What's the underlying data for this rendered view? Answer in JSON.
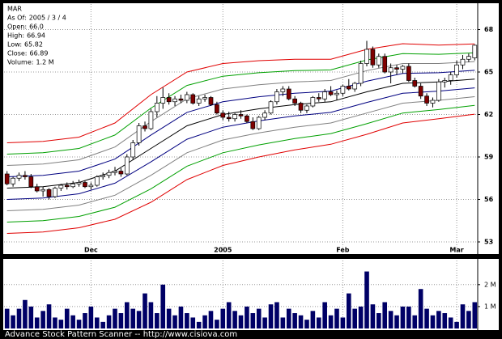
{
  "chart_data": [
    {
      "type": "candlestick",
      "info": [
        {
          "text": "MAR"
        },
        {
          "label": "As Of:",
          "value": "2005 / 3 / 4"
        },
        {
          "label": "Open:",
          "value": "66.0"
        },
        {
          "label": "High:",
          "value": "66.94"
        },
        {
          "label": "Low:",
          "value": "65.82"
        },
        {
          "label": "Close:",
          "value": "66.89"
        },
        {
          "label": "Volume:",
          "value": "1.2 M"
        }
      ],
      "categories": [
        null,
        null,
        null,
        null,
        null,
        null,
        null,
        null,
        null,
        null,
        null,
        null,
        null,
        null,
        "Dec",
        null,
        null,
        null,
        null,
        null,
        null,
        null,
        null,
        null,
        null,
        null,
        null,
        null,
        null,
        null,
        null,
        null,
        null,
        null,
        null,
        null,
        "2005",
        null,
        null,
        null,
        null,
        null,
        null,
        null,
        null,
        null,
        null,
        null,
        null,
        null,
        null,
        null,
        null,
        null,
        null,
        null,
        "Feb",
        null,
        null,
        null,
        null,
        null,
        null,
        null,
        null,
        null,
        null,
        null,
        null,
        null,
        null,
        null,
        null,
        null,
        null,
        "Mar",
        null,
        null,
        null
      ],
      "open": [
        57.8,
        57.1,
        57.5,
        57.7,
        57.6,
        56.9,
        56.6,
        56.7,
        56.2,
        56.8,
        57.0,
        56.9,
        57.1,
        57.2,
        56.9,
        57.0,
        57.6,
        57.7,
        57.9,
        58.0,
        57.8,
        59.0,
        60.0,
        61.2,
        61.0,
        62.2,
        62.8,
        63.2,
        62.9,
        63.1,
        63.0,
        63.4,
        62.8,
        63.1,
        63.2,
        62.7,
        62.1,
        61.8,
        61.7,
        62.0,
        61.9,
        61.5,
        61.0,
        61.8,
        62.1,
        62.9,
        63.6,
        63.8,
        63.1,
        62.8,
        62.3,
        62.6,
        63.2,
        63.1,
        63.6,
        63.4,
        63.5,
        64.0,
        63.8,
        64.2,
        65.6,
        66.6,
        65.5,
        66.1,
        65.0,
        65.3,
        65.2,
        65.4,
        64.4,
        64.0,
        63.3,
        62.8,
        63.0,
        64.3,
        64.4,
        64.8,
        65.5,
        65.9,
        66.0
      ],
      "high": [
        58.0,
        57.6,
        57.9,
        58.0,
        57.8,
        57.1,
        56.9,
        56.8,
        56.9,
        57.1,
        57.2,
        57.3,
        57.4,
        57.3,
        57.2,
        57.7,
        57.9,
        58.1,
        58.3,
        58.2,
        59.2,
        60.2,
        61.4,
        61.5,
        62.4,
        63.3,
        63.9,
        63.5,
        63.3,
        63.4,
        63.6,
        63.5,
        63.3,
        63.4,
        63.3,
        62.9,
        62.3,
        62.2,
        62.1,
        62.3,
        62.0,
        61.8,
        61.9,
        62.3,
        63.0,
        63.8,
        64.0,
        64.0,
        63.3,
        62.9,
        62.7,
        63.3,
        63.5,
        63.8,
        64.0,
        63.7,
        64.1,
        64.5,
        64.3,
        65.8,
        67.2,
        66.8,
        66.3,
        66.3,
        65.6,
        65.5,
        65.5,
        65.6,
        64.6,
        64.2,
        63.5,
        63.2,
        64.5,
        64.6,
        65.0,
        65.8,
        66.2,
        66.3,
        66.94
      ],
      "low": [
        57.0,
        56.9,
        57.3,
        57.4,
        56.8,
        56.5,
        56.2,
        56.0,
        56.1,
        56.6,
        56.7,
        56.8,
        56.9,
        56.8,
        56.7,
        56.9,
        57.4,
        57.5,
        57.7,
        57.6,
        57.7,
        58.8,
        59.8,
        60.8,
        60.9,
        61.8,
        62.4,
        62.7,
        62.6,
        62.8,
        62.8,
        62.7,
        62.6,
        62.9,
        62.6,
        62.0,
        61.6,
        61.5,
        61.5,
        61.7,
        61.4,
        60.9,
        60.9,
        61.6,
        62.0,
        62.7,
        63.3,
        63.0,
        62.6,
        62.1,
        62.1,
        62.5,
        62.9,
        62.9,
        63.3,
        63.0,
        63.3,
        63.7,
        63.6,
        64.0,
        65.4,
        65.3,
        65.3,
        64.9,
        64.2,
        64.8,
        64.9,
        64.3,
        63.9,
        63.1,
        62.6,
        62.5,
        62.9,
        63.9,
        64.1,
        64.6,
        65.2,
        65.7,
        65.82
      ],
      "close": [
        57.1,
        57.5,
        57.7,
        57.6,
        56.9,
        56.6,
        56.7,
        56.2,
        56.8,
        57.0,
        56.9,
        57.1,
        57.2,
        56.9,
        57.0,
        57.6,
        57.7,
        57.9,
        58.0,
        57.8,
        59.0,
        60.0,
        61.2,
        61.0,
        62.2,
        62.8,
        63.2,
        62.9,
        63.1,
        63.0,
        63.4,
        62.8,
        63.1,
        63.2,
        62.7,
        62.1,
        61.8,
        61.7,
        62.0,
        61.9,
        61.5,
        61.0,
        61.8,
        62.1,
        62.9,
        63.6,
        63.8,
        63.1,
        62.8,
        62.3,
        62.6,
        63.2,
        63.1,
        63.6,
        63.4,
        63.5,
        64.0,
        63.8,
        64.2,
        65.6,
        66.6,
        65.5,
        66.1,
        65.0,
        65.3,
        65.2,
        65.4,
        64.4,
        64.0,
        63.3,
        62.8,
        63.0,
        64.3,
        64.4,
        64.8,
        65.5,
        65.9,
        66.1,
        66.89
      ],
      "up_color": "#ffffff",
      "down_color": "#800000",
      "bands": [
        {
          "color": "#e00000",
          "x": [
            0,
            6,
            12,
            18,
            24,
            30,
            36,
            42,
            48,
            54,
            60,
            66,
            72,
            78
          ],
          "values": [
            60.0,
            60.1,
            60.4,
            61.4,
            63.4,
            65.0,
            65.6,
            65.8,
            65.9,
            65.9,
            66.6,
            67.0,
            66.9,
            66.98
          ]
        },
        {
          "color": "#00a000",
          "x": [
            0,
            6,
            12,
            18,
            24,
            30,
            36,
            42,
            48,
            54,
            60,
            66,
            72,
            78
          ],
          "values": [
            59.2,
            59.3,
            59.6,
            60.55,
            62.45,
            64.05,
            64.7,
            64.95,
            65.1,
            65.15,
            65.85,
            66.3,
            66.25,
            66.36
          ]
        },
        {
          "color": "#808080",
          "x": [
            0,
            6,
            12,
            18,
            24,
            30,
            36,
            42,
            48,
            54,
            60,
            66,
            72,
            78
          ],
          "values": [
            58.4,
            58.5,
            58.8,
            59.7,
            61.5,
            63.1,
            63.8,
            64.1,
            64.3,
            64.4,
            65.1,
            65.6,
            65.6,
            65.74
          ]
        },
        {
          "color": "#000080",
          "x": [
            0,
            6,
            12,
            18,
            24,
            30,
            36,
            42,
            48,
            54,
            60,
            66,
            72,
            78
          ],
          "values": [
            57.6,
            57.7,
            58.0,
            58.85,
            60.55,
            62.15,
            62.9,
            63.25,
            63.5,
            63.65,
            64.35,
            64.9,
            64.95,
            65.12
          ]
        },
        {
          "color": "#000000",
          "x": [
            0,
            6,
            12,
            18,
            24,
            30,
            36,
            42,
            48,
            54,
            60,
            66,
            72,
            78
          ],
          "values": [
            56.8,
            56.9,
            57.2,
            58.0,
            59.6,
            61.2,
            62.0,
            62.4,
            62.7,
            62.9,
            63.6,
            64.2,
            64.3,
            64.5
          ]
        },
        {
          "color": "#000080",
          "x": [
            0,
            6,
            12,
            18,
            24,
            30,
            36,
            42,
            48,
            54,
            60,
            66,
            72,
            78
          ],
          "values": [
            56.0,
            56.1,
            56.4,
            57.15,
            58.65,
            60.25,
            61.1,
            61.55,
            61.9,
            62.15,
            62.85,
            63.5,
            63.65,
            63.88
          ]
        },
        {
          "color": "#808080",
          "x": [
            0,
            6,
            12,
            18,
            24,
            30,
            36,
            42,
            48,
            54,
            60,
            66,
            72,
            78
          ],
          "values": [
            55.2,
            55.3,
            55.6,
            56.3,
            57.7,
            59.3,
            60.2,
            60.7,
            61.1,
            61.4,
            62.1,
            62.8,
            63.0,
            63.26
          ]
        },
        {
          "color": "#00a000",
          "x": [
            0,
            6,
            12,
            18,
            24,
            30,
            36,
            42,
            48,
            54,
            60,
            66,
            72,
            78
          ],
          "values": [
            54.4,
            54.5,
            54.8,
            55.45,
            56.75,
            58.35,
            59.3,
            59.85,
            60.3,
            60.65,
            61.35,
            62.1,
            62.35,
            62.64
          ]
        },
        {
          "color": "#e00000",
          "x": [
            0,
            6,
            12,
            18,
            24,
            30,
            36,
            42,
            48,
            54,
            60,
            66,
            72,
            78
          ],
          "values": [
            53.6,
            53.7,
            54.0,
            54.6,
            55.8,
            57.4,
            58.4,
            59.0,
            59.5,
            59.9,
            60.6,
            61.4,
            61.7,
            62.02
          ]
        }
      ],
      "ylim": [
        52.2,
        69.8
      ],
      "yticks": [
        53,
        56,
        59,
        62,
        65,
        68
      ],
      "grid": true
    },
    {
      "type": "bar",
      "color": "#000066",
      "values": [
        0.9,
        0.6,
        0.9,
        1.3,
        1.0,
        0.5,
        0.8,
        1.1,
        0.5,
        0.4,
        0.9,
        0.6,
        0.4,
        0.7,
        1.0,
        0.5,
        0.3,
        0.6,
        0.9,
        0.7,
        1.2,
        0.9,
        0.8,
        1.6,
        1.2,
        0.7,
        2.0,
        0.9,
        0.6,
        1.0,
        0.7,
        0.5,
        0.3,
        0.6,
        0.8,
        0.4,
        0.9,
        1.2,
        0.8,
        0.6,
        1.0,
        0.7,
        0.9,
        0.5,
        1.1,
        1.2,
        0.5,
        0.9,
        0.7,
        0.6,
        0.4,
        0.8,
        0.5,
        1.2,
        0.6,
        0.9,
        0.5,
        1.6,
        0.9,
        1.0,
        2.6,
        1.1,
        0.7,
        1.2,
        0.8,
        0.6,
        1.0,
        1.0,
        0.6,
        1.8,
        0.9,
        0.6,
        0.8,
        0.7,
        0.5,
        0.3,
        1.1,
        0.8,
        1.2
      ],
      "ylim": [
        0,
        3.1
      ],
      "yticks": [
        {
          "value": 1,
          "label": "1 M"
        },
        {
          "value": 2,
          "label": "2 M"
        }
      ],
      "grid": true
    }
  ],
  "footer": "Advance Stock Pattern Scanner -- http://www.cisiova.com"
}
